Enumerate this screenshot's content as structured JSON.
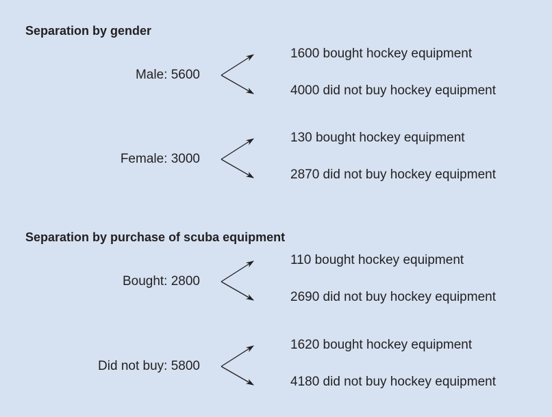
{
  "sections": [
    {
      "title": "Separation by gender",
      "groups": [
        {
          "label": "Male: 5600",
          "branches": [
            "1600 bought hockey equipment",
            "4000 did not buy hockey equipment"
          ]
        },
        {
          "label": "Female: 3000",
          "branches": [
            "130 bought hockey equipment",
            "2870 did not buy hockey equipment"
          ]
        }
      ]
    },
    {
      "title": "Separation by purchase of scuba equipment",
      "groups": [
        {
          "label": "Bought: 2800",
          "branches": [
            "110 bought hockey equipment",
            "2690 did not buy hockey equipment"
          ]
        },
        {
          "label": "Did not buy: 5800",
          "branches": [
            "1620 bought hockey equipment",
            "4180 did not buy hockey equipment"
          ]
        }
      ]
    }
  ]
}
